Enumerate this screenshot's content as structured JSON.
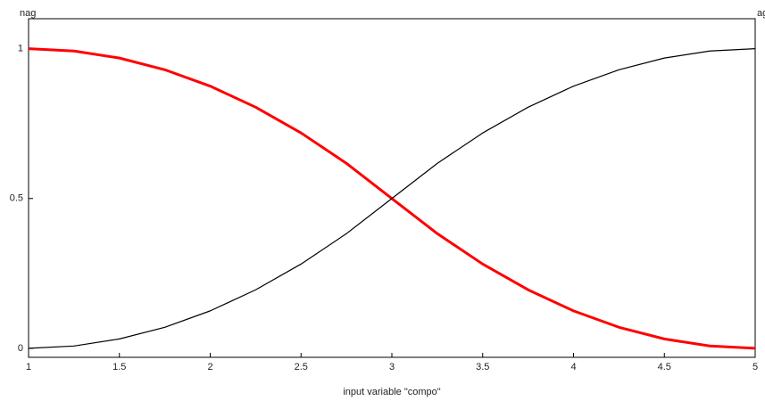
{
  "chart_data": {
    "type": "line",
    "xlabel": "input variable \"compo\"",
    "x": [
      1,
      1.25,
      1.5,
      1.75,
      2,
      2.25,
      2.5,
      2.75,
      3,
      3.25,
      3.5,
      3.75,
      4,
      4.25,
      4.5,
      4.75,
      5
    ],
    "series": [
      {
        "name": "nag",
        "color": "#ff0000",
        "values": [
          1,
          0.9922,
          0.9688,
          0.9297,
          0.875,
          0.8047,
          0.7188,
          0.6172,
          0.5,
          0.3828,
          0.2813,
          0.1953,
          0.125,
          0.0703,
          0.0313,
          0.0078,
          0
        ]
      },
      {
        "name": "ag",
        "color": "#000000",
        "values": [
          0,
          0.0078,
          0.0313,
          0.0703,
          0.125,
          0.1953,
          0.2813,
          0.3828,
          0.5,
          0.6172,
          0.7188,
          0.8047,
          0.875,
          0.9297,
          0.9688,
          0.9922,
          1
        ]
      }
    ],
    "xlim": [
      1,
      5
    ],
    "xticks": [
      1,
      1.5,
      2,
      2.5,
      3,
      3.5,
      4,
      4.5,
      5
    ],
    "ylim": [
      -0.03,
      1.1
    ],
    "yticks": [
      0,
      0.5,
      1
    ]
  }
}
